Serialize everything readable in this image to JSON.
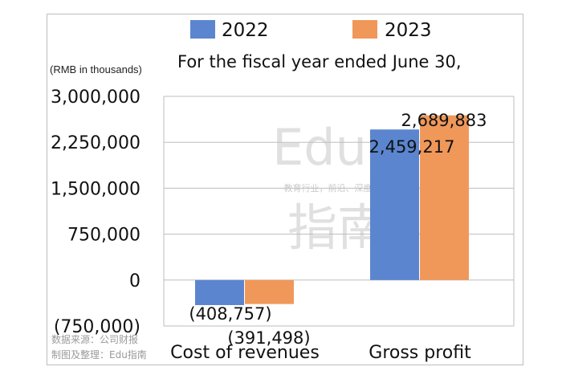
{
  "chart_data": {
    "type": "bar",
    "title": "",
    "subtitle": "For the fiscal year ended June 30,",
    "unit_label": "(RMB in thousands)",
    "categories": [
      "Cost of revenues",
      "Gross profit"
    ],
    "series": [
      {
        "name": "2022",
        "color": "#5b86cf",
        "values": [
          -408757,
          2459217
        ],
        "labels": [
          "(408,757)",
          "2,459,217"
        ]
      },
      {
        "name": "2023",
        "color": "#f0985a",
        "values": [
          -391498,
          2689883
        ],
        "labels": [
          "(391,498)",
          "2,689,883"
        ]
      }
    ],
    "ylim": [
      -750000,
      3000000
    ],
    "yticks": [
      -750000,
      0,
      750000,
      1500000,
      2250000,
      3000000
    ],
    "ytick_labels": [
      "(750,000)",
      "0",
      "750,000",
      "1,500,000",
      "2,250,000",
      "3,000,000"
    ],
    "grid": true,
    "legend_position": "top-center"
  },
  "watermark": {
    "latin": "Edu",
    "chinese": "指南",
    "tagline": "教育行业，前沿、深度、独家"
  },
  "source": {
    "line1": "数据来源：公司财报",
    "line2": "制图及整理：Edu指南"
  }
}
